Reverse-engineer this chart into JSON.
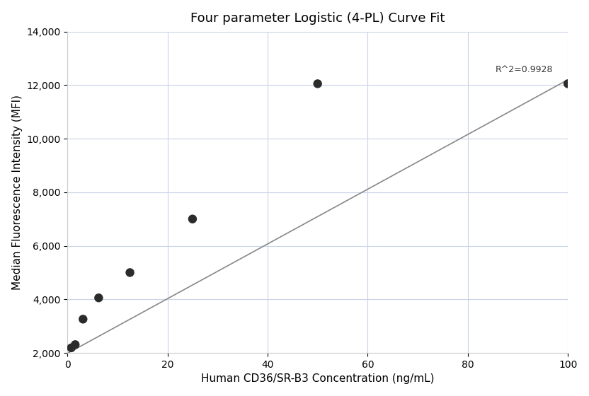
{
  "title": "Four parameter Logistic (4-PL) Curve Fit",
  "xlabel": "Human CD36/SR-B3 Concentration (ng/mL)",
  "ylabel": "Median Fluorescence Intensity (MFI)",
  "points_x": [
    0.78,
    1.563,
    3.125,
    6.25,
    12.5,
    25.0,
    50.0,
    100.0
  ],
  "points_y": [
    2190,
    2310,
    3260,
    4055,
    5000,
    7000,
    12050,
    12050
  ],
  "line_x": [
    0.0,
    100.0
  ],
  "line_y": [
    1980,
    12200
  ],
  "r2_text": "R^2=0.9928",
  "r2_x": 97,
  "r2_y": 12400,
  "xlim": [
    0,
    100
  ],
  "ylim": [
    2000,
    14000
  ],
  "yticks": [
    2000,
    4000,
    6000,
    8000,
    10000,
    12000,
    14000
  ],
  "xticks": [
    0,
    20,
    40,
    60,
    80,
    100
  ],
  "dot_color": "#2b2b2b",
  "dot_size": 80,
  "line_color": "#888888",
  "bg_color": "#ffffff",
  "grid_color": "#c8d4e8",
  "title_fontsize": 13,
  "label_fontsize": 11,
  "tick_fontsize": 10
}
